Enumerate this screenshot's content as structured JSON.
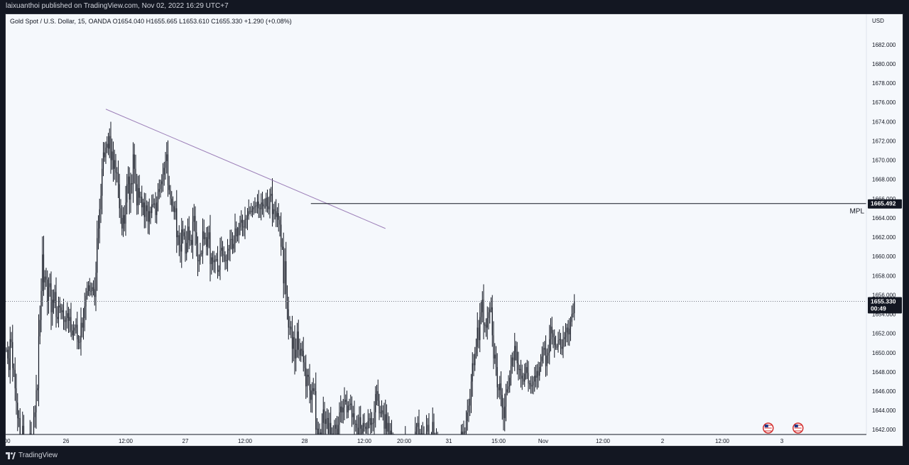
{
  "publish_line": "laixuanthoi published on TradingView.com, Nov 02, 2022 16:29 UTC+7",
  "symbol_line": "Gold Spot / U.S. Dollar, 15, OANDA  O1654.040  H1655.665  L1653.610  C1655.330  +1.290 (+0.08%)",
  "currency": "USD",
  "brand": "TradingView",
  "colors": {
    "candle": "#131722",
    "trendline": "#9c7fb8",
    "level": "#131722",
    "current_line": "#787b86",
    "background": "#f5f8fc"
  },
  "chart_data": {
    "type": "candlestick",
    "title": "Gold Spot / U.S. Dollar, 15, OANDA",
    "timeframe": "15",
    "ohlc": {
      "open": 1654.04,
      "high": 1655.665,
      "low": 1653.61,
      "close": 1655.33,
      "change": "+1.290 (+0.08%)"
    },
    "ylim": [
      1641.5,
      1684.5
    ],
    "y_ticks": [
      "1642.000",
      "1644.000",
      "1646.000",
      "1648.000",
      "1650.000",
      "1652.000",
      "1654.000",
      "1656.000",
      "1658.000",
      "1660.000",
      "1662.000",
      "1664.000",
      "1666.000",
      "1668.000",
      "1670.000",
      "1672.000",
      "1674.000",
      "1676.000",
      "1678.000",
      "1680.000",
      "1682.000"
    ],
    "x_ticks": [
      {
        "label": ":00",
        "i": 0
      },
      {
        "label": "26",
        "i": 48
      },
      {
        "label": "12:00",
        "i": 96
      },
      {
        "label": "27",
        "i": 144
      },
      {
        "label": "12:00",
        "i": 192
      },
      {
        "label": "28",
        "i": 240
      },
      {
        "label": "12:00",
        "i": 288
      },
      {
        "label": "20:00",
        "i": 320
      },
      {
        "label": "31",
        "i": 356
      },
      {
        "label": "15:00",
        "i": 396
      },
      {
        "label": "Nov",
        "i": 432
      },
      {
        "label": "12:00",
        "i": 480
      },
      {
        "label": "2",
        "i": 528
      },
      {
        "label": "12:00",
        "i": 576
      },
      {
        "label": "3",
        "i": 624
      }
    ],
    "closes": [
      1650.3,
      1649.4,
      1648.2,
      1651.4,
      1651.1,
      1648.4,
      1648.2,
      1646.3,
      1644.8,
      1643.2,
      1643.2,
      1640.6,
      1640.5,
      1642.4,
      1639.7,
      1640.1,
      1640.3,
      1639.8,
      1640.5,
      1641.6,
      1639.2,
      1640.3,
      1643.3,
      1643.8,
      1646.1,
      1646.3,
      1651.7,
      1653.4,
      1656.4,
      1660.2,
      1657.3,
      1657.9,
      1657.6,
      1655.3,
      1656.8,
      1657.2,
      1654.2,
      1655.5,
      1655.2,
      1656.3,
      1653.7,
      1653.5,
      1654.9,
      1654.7,
      1654.2,
      1654.4,
      1653.4,
      1653.2,
      1653.6,
      1654.1,
      1653.3,
      1653.7,
      1652.3,
      1651.8,
      1652.3,
      1652.6,
      1652.9,
      1651.4,
      1651.1,
      1651.1,
      1653.1,
      1652.6,
      1653.6,
      1654.8,
      1655.9,
      1656.4,
      1657.0,
      1656.4,
      1656.4,
      1656.8,
      1656.6,
      1655.8,
      1658.3,
      1661.9,
      1662.9,
      1664.9,
      1666.3,
      1669.1,
      1670.8,
      1670.3,
      1671.3,
      1671.7,
      1671.2,
      1672.5,
      1670.0,
      1670.9,
      1669.1,
      1670.0,
      1668.7,
      1668.7,
      1667.5,
      1665.0,
      1664.0,
      1662.9,
      1664.3,
      1663.4,
      1665.6,
      1667.5,
      1668.3,
      1665.9,
      1667.6,
      1667.5,
      1670.6,
      1669.1,
      1667.5,
      1665.3,
      1667.1,
      1666.1,
      1666.2,
      1665.1,
      1665.6,
      1664.1,
      1665.3,
      1664.7,
      1663.6,
      1664.7,
      1664.5,
      1665.4,
      1665.4,
      1665.5,
      1664.3,
      1665.6,
      1666.7,
      1667.0,
      1667.5,
      1667.8,
      1668.5,
      1669.2,
      1669.9,
      1670.6,
      1667.4,
      1666.9,
      1666.0,
      1665.3,
      1665.2,
      1664.6,
      1665.0,
      1662.0,
      1662.2,
      1661.2,
      1660.5,
      1662.8,
      1662.5,
      1662.1,
      1660.3,
      1661.4,
      1663.1,
      1661.7,
      1661.7,
      1661.2,
      1663.6,
      1664.2,
      1662.5,
      1661.3,
      1659.5,
      1659.6,
      1660.3,
      1660.3,
      1662.6,
      1661.8,
      1662.0,
      1661.0,
      1661.8,
      1662.5,
      1659.2,
      1659.9,
      1659.6,
      1659.4,
      1659.7,
      1659.7,
      1658.4,
      1658.6,
      1660.6,
      1660.9,
      1660.2,
      1660.1,
      1659.5,
      1659.6,
      1660.6,
      1660.8,
      1661.8,
      1661.8,
      1660.8,
      1661.3,
      1662.9,
      1662.1,
      1662.2,
      1663.0,
      1663.5,
      1663.8,
      1663.1,
      1663.0,
      1663.9,
      1663.9,
      1664.2,
      1664.7,
      1664.7,
      1664.6,
      1664.9,
      1665.1,
      1665.2,
      1665.3,
      1665.7,
      1665.0,
      1664.9,
      1665.6,
      1665.4,
      1665.2,
      1665.2,
      1666.1,
      1665.2,
      1664.9,
      1666.3,
      1666.5,
      1664.4,
      1664.9,
      1664.7,
      1664.1,
      1664.5,
      1663.8,
      1663.3,
      1661.0,
      1661.0,
      1657.2,
      1659.5,
      1656.1,
      1654.5,
      1652.6,
      1652.7,
      1652.4,
      1650.4,
      1651.6,
      1649.4,
      1650.3,
      1652.2,
      1650.3,
      1649.7,
      1650.4,
      1650.2,
      1649.0,
      1648.4,
      1646.5,
      1647.7,
      1647.5,
      1646.1,
      1645.1,
      1646.0,
      1646.3,
      1646.0,
      1642.0,
      1642.1,
      1641.3,
      1641.7,
      1641.3,
      1642.7,
      1644.1,
      1642.6,
      1643.1,
      1643.2,
      1641.6,
      1642.7,
      1640.7,
      1641.5,
      1641.6,
      1642.5,
      1642.1,
      1640.7,
      1642.5,
      1643.8,
      1644.4,
      1643.8,
      1644.3,
      1645.1,
      1644.9,
      1643.8,
      1644.5,
      1644.6,
      1644.7,
      1643.3,
      1643.7,
      1642.6,
      1642.6,
      1642.2,
      1641.2,
      1643.3,
      1642.1,
      1641.6,
      1642.7,
      1642.3,
      1642.1,
      1642.1,
      1642.9,
      1643.2,
      1642.5,
      1642.7,
      1642.7,
      1643.8,
      1645.7,
      1646.0,
      1645.0,
      1643.7,
      1643.8,
      1644.0,
      1643.6,
      1642.1,
      1643.6,
      1641.8,
      1642.7,
      1641.2,
      1641.9,
      1641.2,
      1640.6,
      1639.6,
      1639.4,
      1640.1,
      1638.9,
      1639.2,
      1639.0,
      1638.3,
      1638.1,
      1637.7,
      1640.6,
      1639.6,
      1639.8,
      1638.9,
      1639.0,
      1638.3,
      1639.3,
      1639.5,
      1641.8,
      1642.3,
      1642.7,
      1641.1,
      1641.6,
      1640.9,
      1641.6,
      1640.5,
      1639.6,
      1641.8,
      1642.5,
      1641.2,
      1641.1,
      1640.8,
      1642.8,
      1641.0,
      1640.9,
      1641.1,
      1640.2,
      1639.7,
      1639.3,
      1639.5,
      1638.9,
      1639.0,
      1639.0,
      1639.6,
      1638.0,
      1638.4,
      1638.2,
      1639.9,
      1638.9,
      1639.6,
      1639.6,
      1638.8,
      1640.1,
      1640.6,
      1640.5,
      1641.8,
      1641.3,
      1641.8,
      1641.7,
      1642.9,
      1643.8,
      1644.5,
      1645.2,
      1647.0,
      1648.9,
      1648.7,
      1649.9,
      1650.6,
      1652.6,
      1651.3,
      1653.7,
      1654.2,
      1655.5,
      1652.9,
      1652.9,
      1652.6,
      1653.6,
      1654.2,
      1654.5,
      1654.7,
      1651.8,
      1649.4,
      1649.8,
      1648.5,
      1646.4,
      1646.1,
      1646.8,
      1645.6,
      1644.3,
      1643.2,
      1644.4,
      1645.9,
      1646.2,
      1646.5,
      1647.4,
      1648.6,
      1649.5,
      1649.2,
      1650.7,
      1650.1,
      1648.9,
      1648.2,
      1648.3,
      1647.6,
      1647.3,
      1647.0,
      1647.8,
      1648.5,
      1647.9,
      1646.8,
      1646.8,
      1646.5,
      1646.6,
      1647.0,
      1647.6,
      1647.4,
      1648.1,
      1647.6,
      1648.5,
      1649.1,
      1649.6,
      1650.5,
      1650.3,
      1648.6,
      1649.7,
      1650.0,
      1651.4,
      1652.7,
      1652.0,
      1651.6,
      1650.8,
      1650.6,
      1650.6,
      1651.3,
      1651.4,
      1650.6,
      1650.4,
      1651.4,
      1651.6,
      1652.1,
      1652.6,
      1651.9,
      1652.5,
      1653.2,
      1654.0,
      1654.1,
      1655.3
    ],
    "trendline": {
      "from": {
        "i": 80,
        "price": 1675.3
      },
      "to": {
        "i": 305,
        "price": 1662.9
      }
    },
    "horizontal_level": {
      "name": "MPL",
      "price": 1665.492,
      "label": "1665.492",
      "from_i": 245
    },
    "current_price": {
      "price": 1655.33,
      "label": "1655.330",
      "countdown": "00:49"
    },
    "event_markers": [
      {
        "i": 613,
        "icon": "us-flag-icon"
      },
      {
        "i": 637,
        "icon": "us-flag-icon"
      }
    ]
  }
}
